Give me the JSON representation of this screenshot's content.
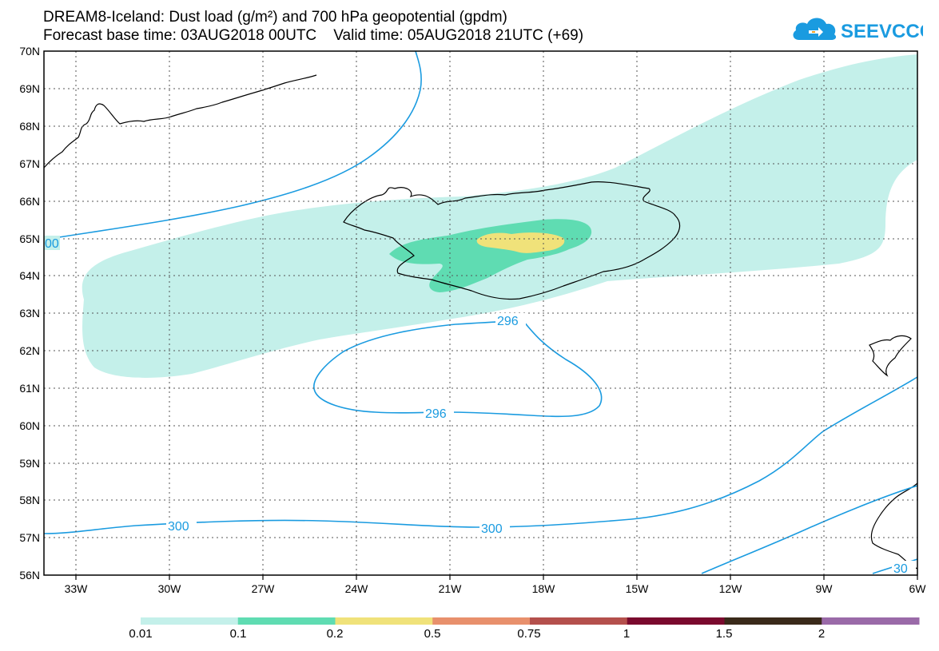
{
  "title": {
    "line1": "DREAM8-Iceland: Dust load (g/m²) and 700 hPa geopotential (gpdm)",
    "line2": "Forecast base time: 03AUG2018 00UTC    Valid time: 05AUG2018 21UTC (+69)"
  },
  "logo": {
    "text": "SEEVCCC",
    "icon": "cloud-icon",
    "color": "#1a9be0"
  },
  "map": {
    "lon_range": [
      -34,
      -6
    ],
    "lat_range": [
      56,
      70
    ],
    "lon_ticks": [
      "33W",
      "30W",
      "27W",
      "24W",
      "21W",
      "18W",
      "15W",
      "12W",
      "9W",
      "6W"
    ],
    "lat_ticks": [
      "70N",
      "69N",
      "68N",
      "67N",
      "66N",
      "65N",
      "64N",
      "63N",
      "62N",
      "61N",
      "60N",
      "59N",
      "58N",
      "57N",
      "56N"
    ],
    "contour_labels": [
      "00",
      "296",
      "296",
      "300",
      "300",
      "30"
    ],
    "contour_color": "#1a9be0",
    "fill_colors": [
      "#c4f0ea",
      "#5fdcb2",
      "#f0e27a"
    ]
  },
  "colorbar": {
    "labels": [
      "0.01",
      "0.1",
      "0.2",
      "0.5",
      "0.75",
      "1",
      "1.5",
      "2"
    ],
    "colors": [
      "#c4f0ea",
      "#5fdcb2",
      "#f0e27a",
      "#e8906c",
      "#b4504c",
      "#7a0a2e",
      "#3a2a1a",
      "#9a6aa8"
    ]
  }
}
